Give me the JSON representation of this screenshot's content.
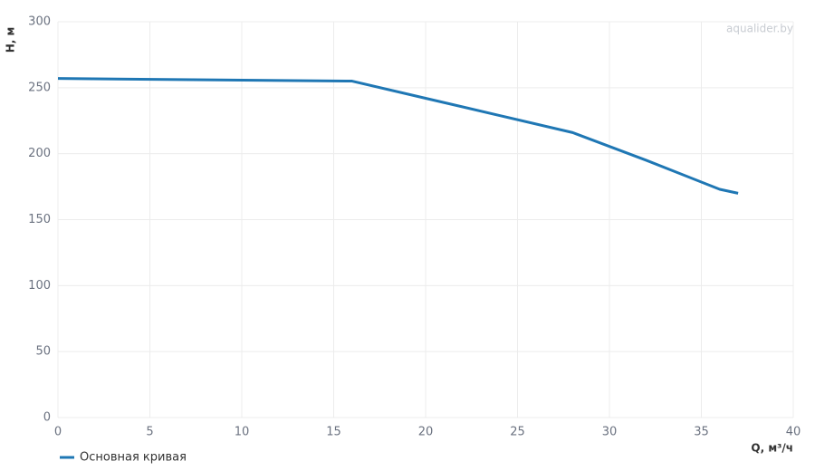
{
  "chart_data": {
    "type": "line",
    "x_label": "Q, м³/ч",
    "y_label": "H, м",
    "watermark": "aqualider.by",
    "x": [
      0,
      16,
      20,
      24,
      28,
      32,
      36,
      37
    ],
    "series": [
      {
        "name": "Основная кривая",
        "color": "#1f77b4",
        "values": [
          257,
          255,
          242,
          229,
          216,
          195,
          173,
          170
        ]
      }
    ],
    "xlim": [
      0,
      40
    ],
    "xticks": [
      0,
      5,
      10,
      15,
      20,
      25,
      30,
      35,
      40
    ],
    "ylim": [
      0,
      300
    ],
    "yticks": [
      0,
      50,
      100,
      150,
      200,
      250,
      300
    ],
    "grid": true
  }
}
